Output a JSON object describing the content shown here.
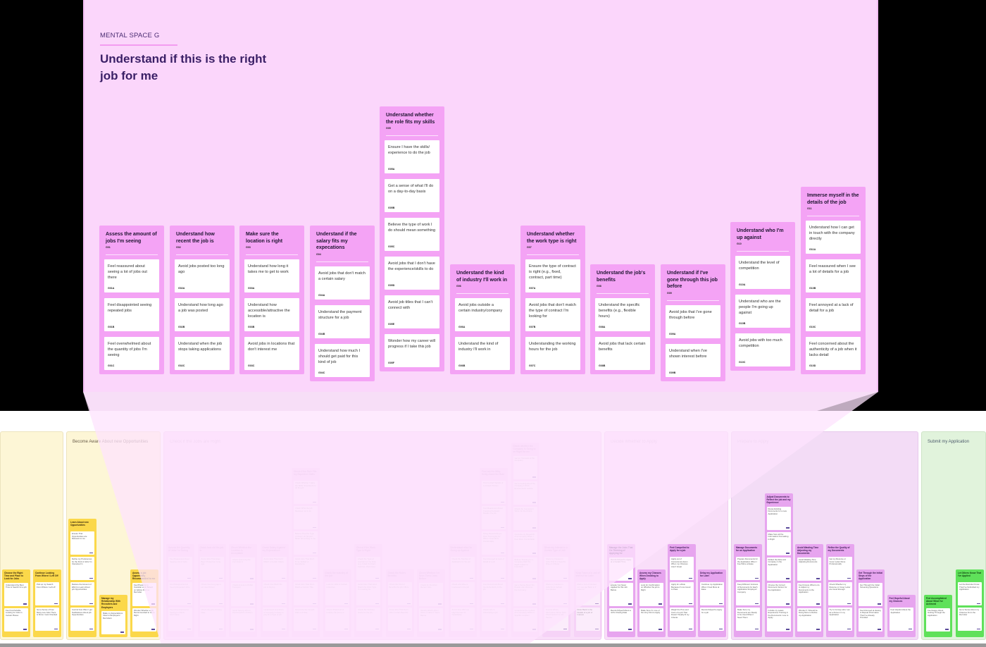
{
  "mental_space": {
    "label": "MENTAL SPACE G",
    "title": "Understand if this is the right job for me",
    "columns": [
      {
        "title": "Assess the amount of jobs I'm seeing",
        "code": "G01",
        "cards": [
          {
            "text": "Feel reassured about seeing a lot of jobs out there",
            "code": "G01A"
          },
          {
            "text": "Feel disappointed seeing repeated jobs",
            "code": "G01B"
          },
          {
            "text": "Feel overwhelmed about the quantity of jobs I'm seeing",
            "code": "G01C"
          }
        ]
      },
      {
        "title": "Understand how recent the job is",
        "code": "G02",
        "cards": [
          {
            "text": "Avoid jobs posted too long ago",
            "code": "G02A"
          },
          {
            "text": "Understand how long ago a job was posted",
            "code": "G02B"
          },
          {
            "text": "Understand when the job stops taking applications",
            "code": "G02C"
          }
        ]
      },
      {
        "title": "Make sure the location is right",
        "code": "G03",
        "cards": [
          {
            "text": "Understand how long it takes me to get to work",
            "code": "G03A"
          },
          {
            "text": "Understand how accessible/attractive the location is",
            "code": "G03B"
          },
          {
            "text": "Avoid jobs in locations that don't interest me",
            "code": "G03C"
          }
        ]
      },
      {
        "title": "Understand if the salary fits my expecations",
        "code": "G04",
        "cards": [
          {
            "text": "Avoid jobs that don't match a certain salary",
            "code": "G04A"
          },
          {
            "text": "Understand the payment structure for a job",
            "code": "G04B"
          },
          {
            "text": "Understand how much I should get paid for this kind of job",
            "code": "G04C"
          }
        ]
      },
      {
        "title": "Understand whether the role fits my skills",
        "code": "G05",
        "cards": [
          {
            "text": "Ensure I have the skills/ experience to do the job",
            "code": "G05A"
          },
          {
            "text": "Get a sense of what I'll do on a day-to-day basis",
            "code": "G05B"
          },
          {
            "text": "Believe the type of work I do should mean something",
            "code": "G05C"
          },
          {
            "text": "Avoid jobs that I don't have the experience/skills to do",
            "code": "G05D"
          },
          {
            "text": "Avoid job titles that I can't connect with",
            "code": "G05E"
          },
          {
            "text": "Wonder how my career will progress if I take this job",
            "code": "G05F"
          }
        ]
      },
      {
        "title": "Understand the kind of industry I'll work in",
        "code": "G06",
        "cards": [
          {
            "text": "Avoid jobs outside a certain industry/company",
            "code": "G06A"
          },
          {
            "text": "Understand the kind of industry I'll work in",
            "code": "G06B"
          }
        ]
      },
      {
        "title": "Understand whether the work type is right",
        "code": "G07",
        "cards": [
          {
            "text": "Ensure the type of contract is right (e.g., fixed, contract, part time)",
            "code": "G07A"
          },
          {
            "text": "Avoid jobs that don't match the type of contract I'm looking for",
            "code": "G07B"
          },
          {
            "text": "Understanding the working hours for the job",
            "code": "G07C"
          }
        ]
      },
      {
        "title": "Understand the job's benefits",
        "code": "G08",
        "cards": [
          {
            "text": "Understand the specific benefits (e.g., flexible hours)",
            "code": "G08A"
          },
          {
            "text": "Avoid jobs that lack certain benefits",
            "code": "G08B"
          }
        ]
      },
      {
        "title": "Understand if I've gone through this job before",
        "code": "G09",
        "cards": [
          {
            "text": "Avoid jobs that I've gone through before",
            "code": "G09A"
          },
          {
            "text": "Understand when I've shown interest before",
            "code": "G09B"
          }
        ]
      },
      {
        "title": "Understand who I'm up against",
        "code": "G10",
        "cards": [
          {
            "text": "Understand the level of competition",
            "code": "G10A"
          },
          {
            "text": "Understand who are the people I'm going up against",
            "code": "G10B"
          },
          {
            "text": "Avoid jobs with too much competition",
            "code": "G10C"
          }
        ]
      },
      {
        "title": "Immerse myself in the details of the job",
        "code": "G11",
        "cards": [
          {
            "text": "Understand how I can get in touch with the company directly",
            "code": "G11A"
          },
          {
            "text": "Feel reassured when I see a lot of details for a job",
            "code": "G10B"
          },
          {
            "text": "Feel annoyed at a lack of detail for a job",
            "code": "G10C"
          },
          {
            "text": "Feel concerned about the authenticity of a job when it lacks detail",
            "code": "G10D"
          }
        ]
      }
    ]
  },
  "phases": [
    {
      "title": "",
      "color": "#fdf6d6"
    },
    {
      "title": "Become Aware About new Opportunities",
      "color": "#fdf6d6"
    },
    {
      "title": "Check if the Jobs are Right",
      "color": "#f9def9"
    },
    {
      "title": "Decide Whether to Apply",
      "color": "#f9def9"
    },
    {
      "title": "Prepare to Apply",
      "color": "#f3dcf6"
    },
    {
      "title": "Submit my Application",
      "color": "#e1f3dc"
    }
  ],
  "bottom_columns": {
    "awareness_left": [
      {
        "title": "Choose the Right Time and Place to Look for Jobs",
        "cards": [
          "Understand the Best Time to Search for a job",
          "Feel Comfortable Looking for Jobs in Certain Places"
        ]
      },
      {
        "title": "Continue Looking From Where I Left Off",
        "cards": [
          "Pick up my Search From Where I Left off",
          "Get a Sense of how Many new Jobs There is Since I Last Checked"
        ]
      }
    ],
    "awareness": [
      {
        "title": "Learn About new Opportunities",
        "cards": [
          "Ensure That Opportunities are Relevant to me",
          "Define my Preferences for the Kind of Jobs I'm Interested in",
          "Reduce the Amount of Effort to Learn About job Opportunities",
          "Control how Often I get Notifications About job Opportunities"
        ]
      },
      {
        "title": "Manage my Relationship With Recruiters and Employers",
        "cards": [
          "Make my Expectations Clear to Employers/ Recruiters"
        ]
      },
      {
        "title": "Assess a job Opportunity Recommended to me",
        "cards": [
          "Feel Pressure to Consider a job Based on Advice From a Recruiter",
          "Wonder Whether a job Recommended to me is Right"
        ]
      }
    ],
    "check_jobs": [
      {
        "title": "Assess the Quantity of Jobs I'm Seeing",
        "cards": [
          "Feel Reassured About Seeing a lot of Jobs",
          "Feel Disappointed at Seeing Repeated Jobs",
          "Feel Overwhelmed at Seeing too Much Information"
        ]
      },
      {
        "title": "Check how old the job is",
        "cards": [
          "Avoid Jobs That Have Been Posted too Long ago",
          "Check how Long ago a job was Posted",
          "Check the job's Closing Date"
        ]
      },
      {
        "title": "Check Whether the Location is Acceptable",
        "cards": [
          "Check how Long the Commute is",
          "Check Access to Public Transport",
          "Avoid Seeing Jobs in Uninterested Locations"
        ]
      },
      {
        "title": "Check Salary Against my Expectations",
        "cards": [
          "Avoid Jobs That Don't Match a Certain Salary",
          "Check how Much the job is Paying",
          "Understand how Much a Company is Likely to pay for a Type of job"
        ]
      },
      {
        "title": "Check if the Role Fits my Expertise/ Skills",
        "cards": [
          "Check Whether I Have the Skills/ Experience to do the job",
          "Check What the job Requires me to do",
          "Believe That the Type of Work I do Should Mean Something to me",
          "Avoid Jobs That Don't fit my Skillset or Experience",
          "Avoid Jobs That Don't Match a Certain Title",
          "Determine the Growth Path of a Role"
        ]
      },
      {
        "title": "Check the Industry of the job",
        "cards": [
          "Look for Jobs in Certain Industries",
          "Check What Kind of Industry the job is in"
        ]
      },
      {
        "title": "Check if the Work Type is Right",
        "cards": [
          "Check the Type of Contract for the Role (e.g. Fixed Contract, Full-time, Part-time)",
          "Avoid Jobs That Don't Match the Work Type I'm Looking for",
          "Check the Working Hours for the job"
        ]
      },
      {
        "title": "Check the Role's Benefits",
        "cards": [
          "Check the Kind of Benefits the job Offers",
          "Avoid Jobs That Don't Offer Certain Benefits"
        ]
      },
      {
        "title": "Check Whether I've Seen These Jobs Before",
        "cards": [
          "Check for the Most Recent Jobs",
          "Identify Which Jobs I Have or Haven't Seen Before"
        ]
      },
      {
        "title": "Understand who I'm Going up Against",
        "cards": [
          "Check the Number of Applicants for the job",
          "Check who Else is Interested in the job",
          "Avoid Jobs With too High Number of Candidates"
        ]
      },
      {
        "title": "Find out the Nitty-Gritty About the Role",
        "cards": [
          "Find Contact Details of a Contact Person",
          "Feel Reassured About Knowing the Exact Details of a job",
          "Delay Researching a Role Thoroughly for When I Feel More Comfortable",
          "Feel Annoyed at Lack of Detail of a job",
          "Feel Concerned About the Authenticity of the job",
          "Check who is Advertising a job"
        ]
      },
      {
        "title": "Check whether the Company is Going to be Right for me",
        "cards": [
          "Get an Overview of the Company",
          "Get a Feeling About the Company's Work Environment/ Culture",
          "Check the Company's Vision for the Future",
          "Continue my Research of a Company When I Feel More Comfortable",
          "Believe Working for a Company With the Right Culture is Important",
          "Get a Sense About the People who Work for the Company",
          "Understand the Culture of a Company Within a Specific Location"
        ]
      },
      {
        "title": "Show my Interest in a Certain Type of Job",
        "cards": [
          "Show my Interest in Jobs That fit a Specific Role or Criteria",
          "Show my Interest in Jobs From Certain Companies",
          "Control Where Information About Jobs That Interest me are Sent to"
        ]
      },
      {
        "title": "Keep Track of a Job of Interest for Later",
        "cards": [
          "Mark a Job of Interest so I can get Back to it Later on",
          "Refer Back to the Details of a job of Interest"
        ]
      }
    ],
    "decide": [
      {
        "title": "Manage the Jobs That I'm Thinking of Applying for",
        "cards": [
          "Remind Myself to Apply at a Certain Time",
          "Ensure I've Never Applied for this Job Before",
          "Remind Myself About a Job's Closing Date"
        ]
      },
      {
        "title": "Assess my Chances When Deciding to Apply",
        "cards": [
          "Look for Confirmation on Whether the job is Right",
          "Make Sure I'm one of the Very First to Apply"
        ]
      },
      {
        "title": "Feel Compelled to Apply for a job",
        "cards": [
          "Apply out of Convenience Even When my Chances Aren't Great",
          "Apply for a Role Because it's too Good to Pass",
          "Weigh the Pros and Cons of a job That Doesn't Neatly fit my Criteria"
        ]
      },
      {
        "title": "Delay my Application for Later",
        "cards": [
          "Continue my Application When I Feel More at Ease",
          "Remind Myself to Apply for a job"
        ]
      }
    ],
    "prepare": [
      {
        "title": "Manage Documents for an Application",
        "cards": [
          "Prepare Documents for the Application When I Feel More at Ease",
          "Keep Different Versions of Documents for Each Application/ Employer/ Company",
          "Make Sure my Documents are Ready to be Used When I Need Them"
        ]
      },
      {
        "title": "Adjust Documents to Reflect the job and my Experience",
        "cards": [
          "Reuse Existing Documents for a new Application",
          "Make Sure all the Information/ Formatting is Right",
          "Reflect the Role and Company in the Application",
          "Choose the Correct Document Version for the Application",
          "Include my Latest Experience/ Training in the Documents I use to Apply"
        ]
      },
      {
        "title": "Avoid Wasting Time Adjusting my Documents",
        "cards": [
          "Avoid Wasting Time Adjusting Documents",
          "Feel Unsure What to do to Adjust my Documents to the Application",
          "Wonder if I Should be Doing More to Refine my Application"
        ]
      },
      {
        "title": "Refine the Quality of my Documents",
        "cards": [
          "Get my Resume or Cover Letter Done Professionally",
          "Check Whether my Resume or Cover Letter are Good Enough",
          "Try to Convey who I am as a Person in my Application"
        ]
      },
      {
        "title": "Get Through the Initial Steps of the Application",
        "cards": [
          "Get Through the Initial Screening Questions",
          "Feel Annoyed at Having to Repeat Information That I've Already Provided"
        ]
      },
      {
        "title": "Feel Hopeful About my Chances",
        "cards": [
          "Feel Hopeful About the Application"
        ]
      }
    ],
    "submit": [
      {
        "title": "Feel Accomplished About What I've Achieved",
        "cards": [
          "Feel Happy About Getting Through the Application"
        ]
      },
      {
        "title": "Let Others Know That I've Applied",
        "cards": [
          "Let the Recruiter Know That I've Submitted my Application",
          "Get a Sense About my Chances From the Recruiter"
        ]
      }
    ]
  },
  "colors": {
    "mental_space_bg": "#fbd6fb",
    "column_bg": "#f4a3f5",
    "title_text": "#3a1f66",
    "yellow_col": "#fbd84a",
    "pink_col": "#f4c6f6",
    "purple_col": "#e7a5ef",
    "green_col": "#5fe15a"
  }
}
